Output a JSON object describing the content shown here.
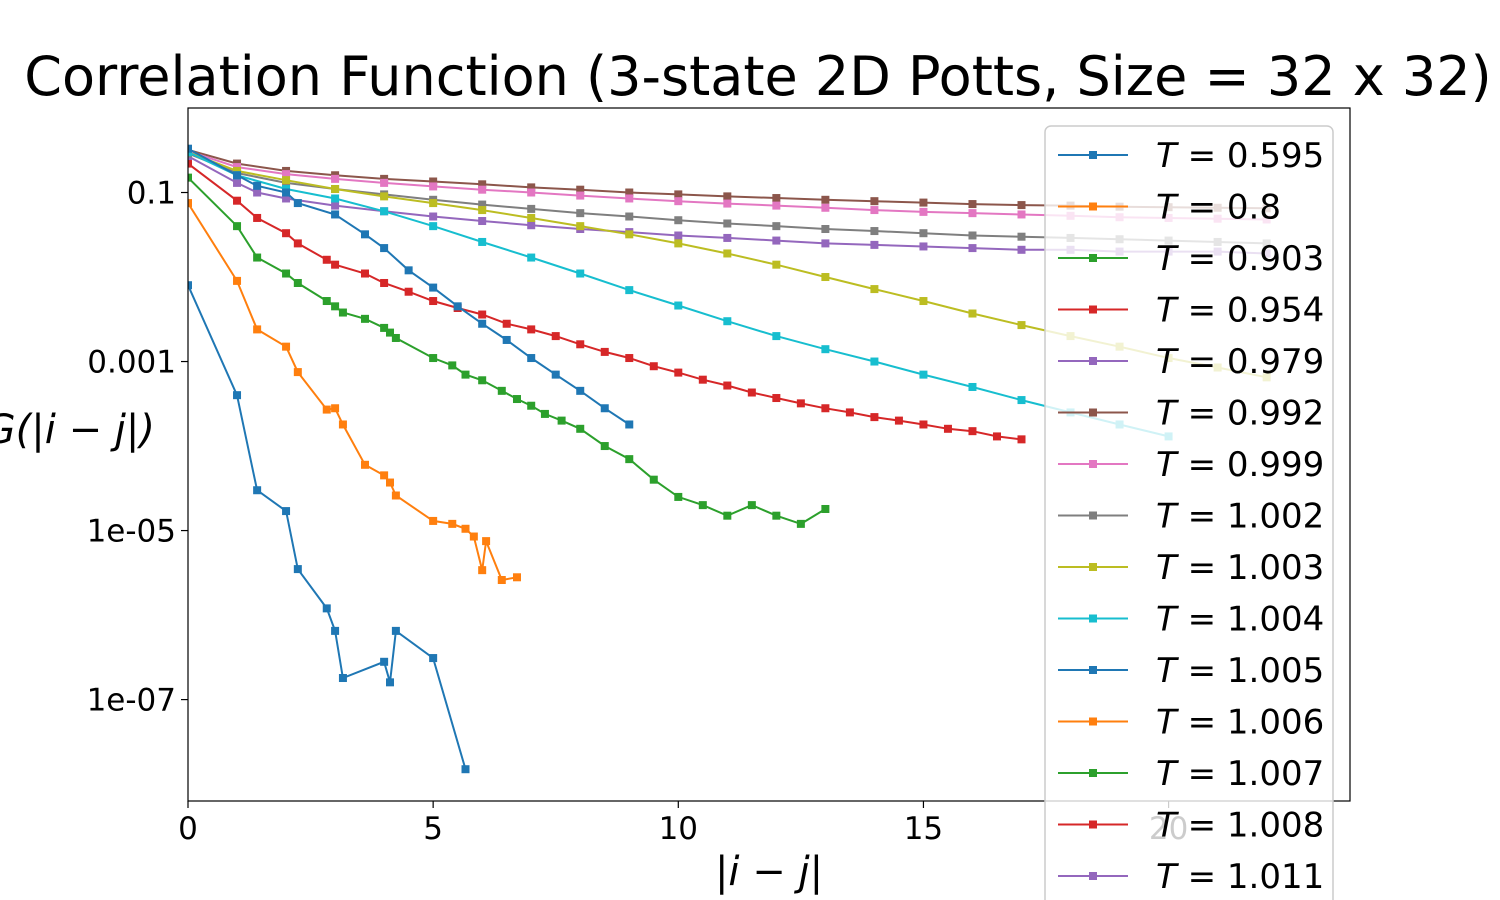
{
  "chart_data": {
    "type": "line",
    "title": "Correlation Function (3-state 2D Potts, Size = 32 x 32)",
    "xlabel": "|i − j|",
    "ylabel": "G(|i − j|)",
    "xlim": [
      0,
      23.7
    ],
    "ylim_log10": [
      -8.2,
      0.0
    ],
    "yscale": "log",
    "x_ticks": [
      0,
      5,
      10,
      15,
      20
    ],
    "x_tick_labels": [
      "0",
      "5",
      "10",
      "15",
      "20"
    ],
    "y_ticks": [
      0.1,
      0.001,
      1e-05,
      1e-07
    ],
    "y_tick_labels": [
      "0.1",
      "0.001",
      "1e-05",
      "1e-07"
    ],
    "grid": false,
    "legend_position": "right",
    "marker": "square",
    "series": [
      {
        "name": "T = 0.595",
        "temperature": "0.595",
        "color": "#1f77b4",
        "points": [
          [
            0,
            0.008
          ],
          [
            1,
            0.0004
          ],
          [
            1.41,
            3e-05
          ],
          [
            2,
            1.7e-05
          ],
          [
            2.24,
            3.5e-06
          ],
          [
            2.83,
            1.2e-06
          ],
          [
            3,
            6.5e-07
          ],
          [
            3.16,
            1.8e-07
          ],
          [
            4,
            2.8e-07
          ],
          [
            4.12,
            1.6e-07
          ],
          [
            4.24,
            6.5e-07
          ],
          [
            5,
            3.1e-07
          ],
          [
            5.66,
            1.5e-08
          ]
        ]
      },
      {
        "name": "T = 0.8",
        "temperature": "0.8",
        "color": "#ff7f0e",
        "points": [
          [
            0,
            0.075
          ],
          [
            1,
            0.009
          ],
          [
            1.41,
            0.0024
          ],
          [
            2,
            0.0015
          ],
          [
            2.24,
            0.00075
          ],
          [
            2.83,
            0.00027
          ],
          [
            3,
            0.00028
          ],
          [
            3.16,
            0.00018
          ],
          [
            3.61,
            6e-05
          ],
          [
            4,
            4.5e-05
          ],
          [
            4.12,
            3.7e-05
          ],
          [
            4.24,
            2.6e-05
          ],
          [
            5,
            1.3e-05
          ],
          [
            5.39,
            1.2e-05
          ],
          [
            5.66,
            1.05e-05
          ],
          [
            5.83,
            8.5e-06
          ],
          [
            6,
            3.4e-06
          ],
          [
            6.08,
            7.5e-06
          ],
          [
            6.4,
            2.6e-06
          ],
          [
            6.71,
            2.8e-06
          ]
        ]
      },
      {
        "name": "T = 0.903",
        "temperature": "0.903",
        "color": "#2ca02c",
        "points": [
          [
            0,
            0.15
          ],
          [
            1,
            0.04
          ],
          [
            1.41,
            0.017
          ],
          [
            2,
            0.011
          ],
          [
            2.24,
            0.0085
          ],
          [
            2.83,
            0.0052
          ],
          [
            3,
            0.0045
          ],
          [
            3.16,
            0.0038
          ],
          [
            3.61,
            0.0032
          ],
          [
            4,
            0.0025
          ],
          [
            4.12,
            0.0022
          ],
          [
            4.24,
            0.0019
          ],
          [
            5,
            0.0011
          ],
          [
            5.39,
            0.0009
          ],
          [
            5.66,
            0.0007
          ],
          [
            6,
            0.0006
          ],
          [
            6.4,
            0.00045
          ],
          [
            6.71,
            0.00036
          ],
          [
            7,
            0.0003
          ],
          [
            7.28,
            0.00024
          ],
          [
            7.62,
            0.0002
          ],
          [
            8,
            0.00016
          ],
          [
            8.5,
            0.0001
          ],
          [
            9,
            7e-05
          ],
          [
            9.5,
            4e-05
          ],
          [
            10,
            2.5e-05
          ],
          [
            10.5,
            2e-05
          ],
          [
            11,
            1.5e-05
          ],
          [
            11.5,
            2e-05
          ],
          [
            12,
            1.5e-05
          ],
          [
            12.5,
            1.2e-05
          ],
          [
            13,
            1.8e-05
          ]
        ]
      },
      {
        "name": "T = 0.954",
        "temperature": "0.954",
        "color": "#d62728",
        "points": [
          [
            0,
            0.22
          ],
          [
            1,
            0.08
          ],
          [
            1.41,
            0.05
          ],
          [
            2,
            0.033
          ],
          [
            2.24,
            0.025
          ],
          [
            2.83,
            0.016
          ],
          [
            3,
            0.014
          ],
          [
            3.61,
            0.011
          ],
          [
            4,
            0.0085
          ],
          [
            4.5,
            0.0067
          ],
          [
            5,
            0.0052
          ],
          [
            5.5,
            0.0043
          ],
          [
            6,
            0.0036
          ],
          [
            6.5,
            0.0028
          ],
          [
            7,
            0.0024
          ],
          [
            7.5,
            0.002
          ],
          [
            8,
            0.0016
          ],
          [
            8.5,
            0.0013
          ],
          [
            9,
            0.0011
          ],
          [
            9.5,
            0.00088
          ],
          [
            10,
            0.00074
          ],
          [
            10.5,
            0.00061
          ],
          [
            11,
            0.00052
          ],
          [
            11.5,
            0.00043
          ],
          [
            12,
            0.00037
          ],
          [
            12.5,
            0.00032
          ],
          [
            13,
            0.00028
          ],
          [
            13.5,
            0.00025
          ],
          [
            14,
            0.00022
          ],
          [
            14.5,
            0.0002
          ],
          [
            15,
            0.00018
          ],
          [
            15.5,
            0.00016
          ],
          [
            16,
            0.00015
          ],
          [
            16.5,
            0.00013
          ],
          [
            17,
            0.00012
          ]
        ]
      },
      {
        "name": "T = 0.979",
        "temperature": "0.979",
        "color": "#9467bd",
        "points": [
          [
            0,
            0.27
          ],
          [
            1,
            0.13
          ],
          [
            1.41,
            0.1
          ],
          [
            2,
            0.085
          ],
          [
            3,
            0.07
          ],
          [
            4,
            0.06
          ],
          [
            5,
            0.052
          ],
          [
            6,
            0.046
          ],
          [
            7,
            0.041
          ],
          [
            8,
            0.037
          ],
          [
            9,
            0.034
          ],
          [
            10,
            0.031
          ],
          [
            11,
            0.029
          ],
          [
            12,
            0.027
          ],
          [
            13,
            0.025
          ],
          [
            14,
            0.024
          ],
          [
            15,
            0.023
          ],
          [
            16,
            0.022
          ],
          [
            17,
            0.021
          ],
          [
            18,
            0.021
          ],
          [
            19,
            0.02
          ],
          [
            20,
            0.02
          ],
          [
            21,
            0.02
          ],
          [
            22,
            0.019
          ]
        ]
      },
      {
        "name": "T = 0.992",
        "temperature": "0.992",
        "color": "#8c564b",
        "points": [
          [
            0,
            0.32
          ],
          [
            1,
            0.22
          ],
          [
            2,
            0.18
          ],
          [
            3,
            0.16
          ],
          [
            4,
            0.145
          ],
          [
            5,
            0.135
          ],
          [
            6,
            0.125
          ],
          [
            7,
            0.115
          ],
          [
            8,
            0.108
          ],
          [
            9,
            0.1
          ],
          [
            10,
            0.095
          ],
          [
            11,
            0.09
          ],
          [
            12,
            0.086
          ],
          [
            13,
            0.082
          ],
          [
            14,
            0.079
          ],
          [
            15,
            0.076
          ],
          [
            16,
            0.073
          ],
          [
            17,
            0.071
          ],
          [
            18,
            0.07
          ],
          [
            19,
            0.068
          ],
          [
            20,
            0.067
          ],
          [
            21,
            0.066
          ],
          [
            22,
            0.065
          ]
        ]
      },
      {
        "name": "T = 0.999",
        "temperature": "0.999",
        "color": "#e377c2",
        "points": [
          [
            0,
            0.31
          ],
          [
            1,
            0.2
          ],
          [
            2,
            0.165
          ],
          [
            3,
            0.145
          ],
          [
            4,
            0.13
          ],
          [
            5,
            0.118
          ],
          [
            6,
            0.108
          ],
          [
            7,
            0.1
          ],
          [
            8,
            0.092
          ],
          [
            9,
            0.085
          ],
          [
            10,
            0.079
          ],
          [
            11,
            0.074
          ],
          [
            12,
            0.07
          ],
          [
            13,
            0.066
          ],
          [
            14,
            0.062
          ],
          [
            15,
            0.059
          ],
          [
            16,
            0.057
          ],
          [
            17,
            0.055
          ],
          [
            18,
            0.053
          ],
          [
            19,
            0.051
          ],
          [
            20,
            0.05
          ],
          [
            21,
            0.049
          ],
          [
            22,
            0.048
          ]
        ]
      },
      {
        "name": "T = 1.002",
        "temperature": "1.002",
        "color": "#7f7f7f",
        "points": [
          [
            0,
            0.29
          ],
          [
            1,
            0.17
          ],
          [
            2,
            0.13
          ],
          [
            3,
            0.11
          ],
          [
            4,
            0.095
          ],
          [
            5,
            0.082
          ],
          [
            6,
            0.072
          ],
          [
            7,
            0.064
          ],
          [
            8,
            0.057
          ],
          [
            9,
            0.052
          ],
          [
            10,
            0.047
          ],
          [
            11,
            0.043
          ],
          [
            12,
            0.04
          ],
          [
            13,
            0.037
          ],
          [
            14,
            0.035
          ],
          [
            15,
            0.033
          ],
          [
            16,
            0.031
          ],
          [
            17,
            0.03
          ],
          [
            18,
            0.029
          ],
          [
            19,
            0.028
          ],
          [
            20,
            0.027
          ],
          [
            21,
            0.026
          ],
          [
            22,
            0.025
          ]
        ]
      },
      {
        "name": "T = 1.003",
        "temperature": "1.003",
        "color": "#bcbd22",
        "points": [
          [
            0,
            0.3
          ],
          [
            1,
            0.18
          ],
          [
            2,
            0.14
          ],
          [
            3,
            0.11
          ],
          [
            4,
            0.09
          ],
          [
            5,
            0.075
          ],
          [
            6,
            0.062
          ],
          [
            7,
            0.05
          ],
          [
            8,
            0.04
          ],
          [
            9,
            0.032
          ],
          [
            10,
            0.025
          ],
          [
            11,
            0.019
          ],
          [
            12,
            0.014
          ],
          [
            13,
            0.01
          ],
          [
            14,
            0.0072
          ],
          [
            15,
            0.0052
          ],
          [
            16,
            0.0037
          ],
          [
            17,
            0.0027
          ],
          [
            18,
            0.002
          ],
          [
            19,
            0.0015
          ],
          [
            20,
            0.0011
          ],
          [
            21,
            0.00085
          ],
          [
            22,
            0.00065
          ]
        ]
      },
      {
        "name": "T = 1.004",
        "temperature": "1.004",
        "color": "#17becf",
        "points": [
          [
            0,
            0.3
          ],
          [
            1,
            0.16
          ],
          [
            2,
            0.11
          ],
          [
            3,
            0.085
          ],
          [
            4,
            0.06
          ],
          [
            5,
            0.04
          ],
          [
            6,
            0.026
          ],
          [
            7,
            0.017
          ],
          [
            8,
            0.011
          ],
          [
            9,
            0.007
          ],
          [
            10,
            0.0046
          ],
          [
            11,
            0.003
          ],
          [
            12,
            0.002
          ],
          [
            13,
            0.0014
          ],
          [
            14,
            0.001
          ],
          [
            15,
            0.0007
          ],
          [
            16,
            0.0005
          ],
          [
            17,
            0.00035
          ],
          [
            18,
            0.00025
          ],
          [
            19,
            0.00018
          ],
          [
            20,
            0.00013
          ]
        ]
      },
      {
        "name": "T = 1.005",
        "temperature": "1.005",
        "color": "#1f77b4",
        "points": [
          [
            0,
            0.33
          ],
          [
            1,
            0.16
          ],
          [
            1.41,
            0.12
          ],
          [
            2,
            0.1
          ],
          [
            2.24,
            0.075
          ],
          [
            3,
            0.055
          ],
          [
            3.61,
            0.032
          ],
          [
            4,
            0.022
          ],
          [
            4.5,
            0.012
          ],
          [
            5,
            0.0075
          ],
          [
            5.5,
            0.0045
          ],
          [
            6,
            0.0028
          ],
          [
            6.5,
            0.0018
          ],
          [
            7,
            0.0011
          ],
          [
            7.5,
            0.0007
          ],
          [
            8,
            0.00045
          ],
          [
            8.5,
            0.00028
          ],
          [
            9,
            0.00018
          ]
        ]
      },
      {
        "name": "T = 1.006",
        "temperature": "1.006",
        "color": "#ff7f0e",
        "points": []
      },
      {
        "name": "T = 1.007",
        "temperature": "1.007",
        "color": "#2ca02c",
        "points": []
      },
      {
        "name": "T = 1.008",
        "temperature": "1.008",
        "color": "#d62728",
        "points": []
      },
      {
        "name": "T = 1.011",
        "temperature": "1.011",
        "color": "#9467bd",
        "points": []
      }
    ]
  }
}
